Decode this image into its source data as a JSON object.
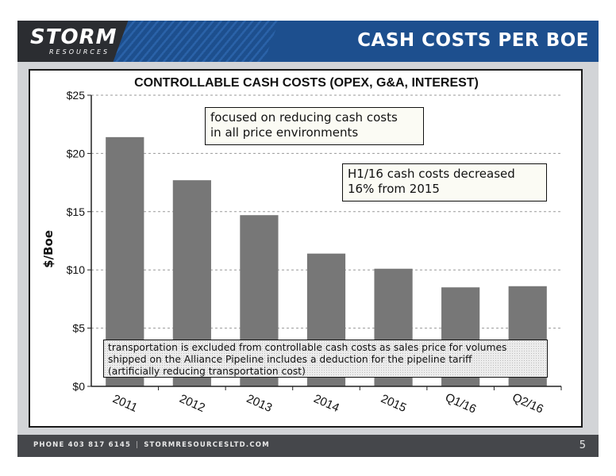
{
  "header": {
    "logo_text": "STORM",
    "logo_sub": "RESOURCES",
    "title": "CASH COSTS PER BOE"
  },
  "annotations": {
    "focus_line1": "focused on reducing cash costs",
    "focus_line2": "in all price environments",
    "decrease_line1": "H1/16 cash costs decreased",
    "decrease_line2": "16% from 2015",
    "note_line1": "transportation is excluded from controllable cash costs as sales price for volumes",
    "note_line2": "shipped on the Alliance Pipeline includes a deduction for the pipeline tariff",
    "note_line3": "(artificially reducing transportation cost)"
  },
  "footer": {
    "phone": "PHONE 403 817 6145",
    "website": "STORMRESOURCESLTD.COM",
    "page_number": "5"
  },
  "colors": {
    "header_blue": "#1d4f8e",
    "bar_gray": "#777777",
    "content_gray": "#d2d4d7",
    "footer_gray": "#45474b"
  },
  "chart_data": {
    "type": "bar",
    "title": "CONTROLLABLE CASH COSTS (OPEX, G&A, INTEREST)",
    "xlabel": "",
    "ylabel": "$/Boe",
    "categories": [
      "2011",
      "2012",
      "2013",
      "2014",
      "2015",
      "Q1/16",
      "Q2/16"
    ],
    "values": [
      21.4,
      17.7,
      14.7,
      11.4,
      10.1,
      8.5,
      8.6
    ],
    "ylim": [
      0,
      25
    ],
    "yticks": [
      0,
      5,
      10,
      15,
      20,
      25
    ],
    "ytick_labels": [
      "$0",
      "$5",
      "$10",
      "$15",
      "$20",
      "$25"
    ],
    "grid": true
  }
}
